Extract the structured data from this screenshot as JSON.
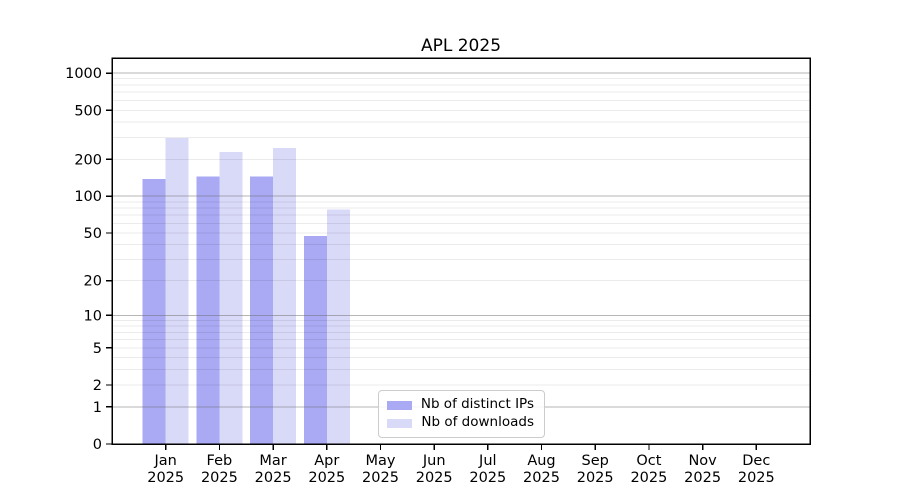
{
  "chart_data": {
    "type": "bar",
    "title": "APL 2025",
    "categories": [
      {
        "line1": "Jan",
        "line2": "2025"
      },
      {
        "line1": "Feb",
        "line2": "2025"
      },
      {
        "line1": "Mar",
        "line2": "2025"
      },
      {
        "line1": "Apr",
        "line2": "2025"
      },
      {
        "line1": "May",
        "line2": "2025"
      },
      {
        "line1": "Jun",
        "line2": "2025"
      },
      {
        "line1": "Jul",
        "line2": "2025"
      },
      {
        "line1": "Aug",
        "line2": "2025"
      },
      {
        "line1": "Sep",
        "line2": "2025"
      },
      {
        "line1": "Oct",
        "line2": "2025"
      },
      {
        "line1": "Nov",
        "line2": "2025"
      },
      {
        "line1": "Dec",
        "line2": "2025"
      }
    ],
    "series": [
      {
        "name": "Nb of distinct IPs",
        "color": "#a9a9f4",
        "values": [
          138,
          145,
          145,
          47,
          null,
          null,
          null,
          null,
          null,
          null,
          null,
          null
        ]
      },
      {
        "name": "Nb of downloads",
        "color": "#d9d9f8",
        "values": [
          297,
          230,
          246,
          78,
          null,
          null,
          null,
          null,
          null,
          null,
          null,
          null
        ]
      }
    ],
    "yticks": [
      0,
      1,
      2,
      5,
      10,
      20,
      50,
      100,
      200,
      500,
      1000
    ],
    "ylim": [
      0,
      1325
    ],
    "yscale": "log1p",
    "xlabel": "",
    "ylabel": "",
    "grid": {
      "major_color": "rgba(110,110,110,0.5)",
      "minor_color": "rgba(0,0,0,0.08)",
      "minor_on": true,
      "grid_above_bars": true
    },
    "legend_position": "inside-bottom-center",
    "axis_color": "#000000",
    "background_color": "#ffffff"
  }
}
